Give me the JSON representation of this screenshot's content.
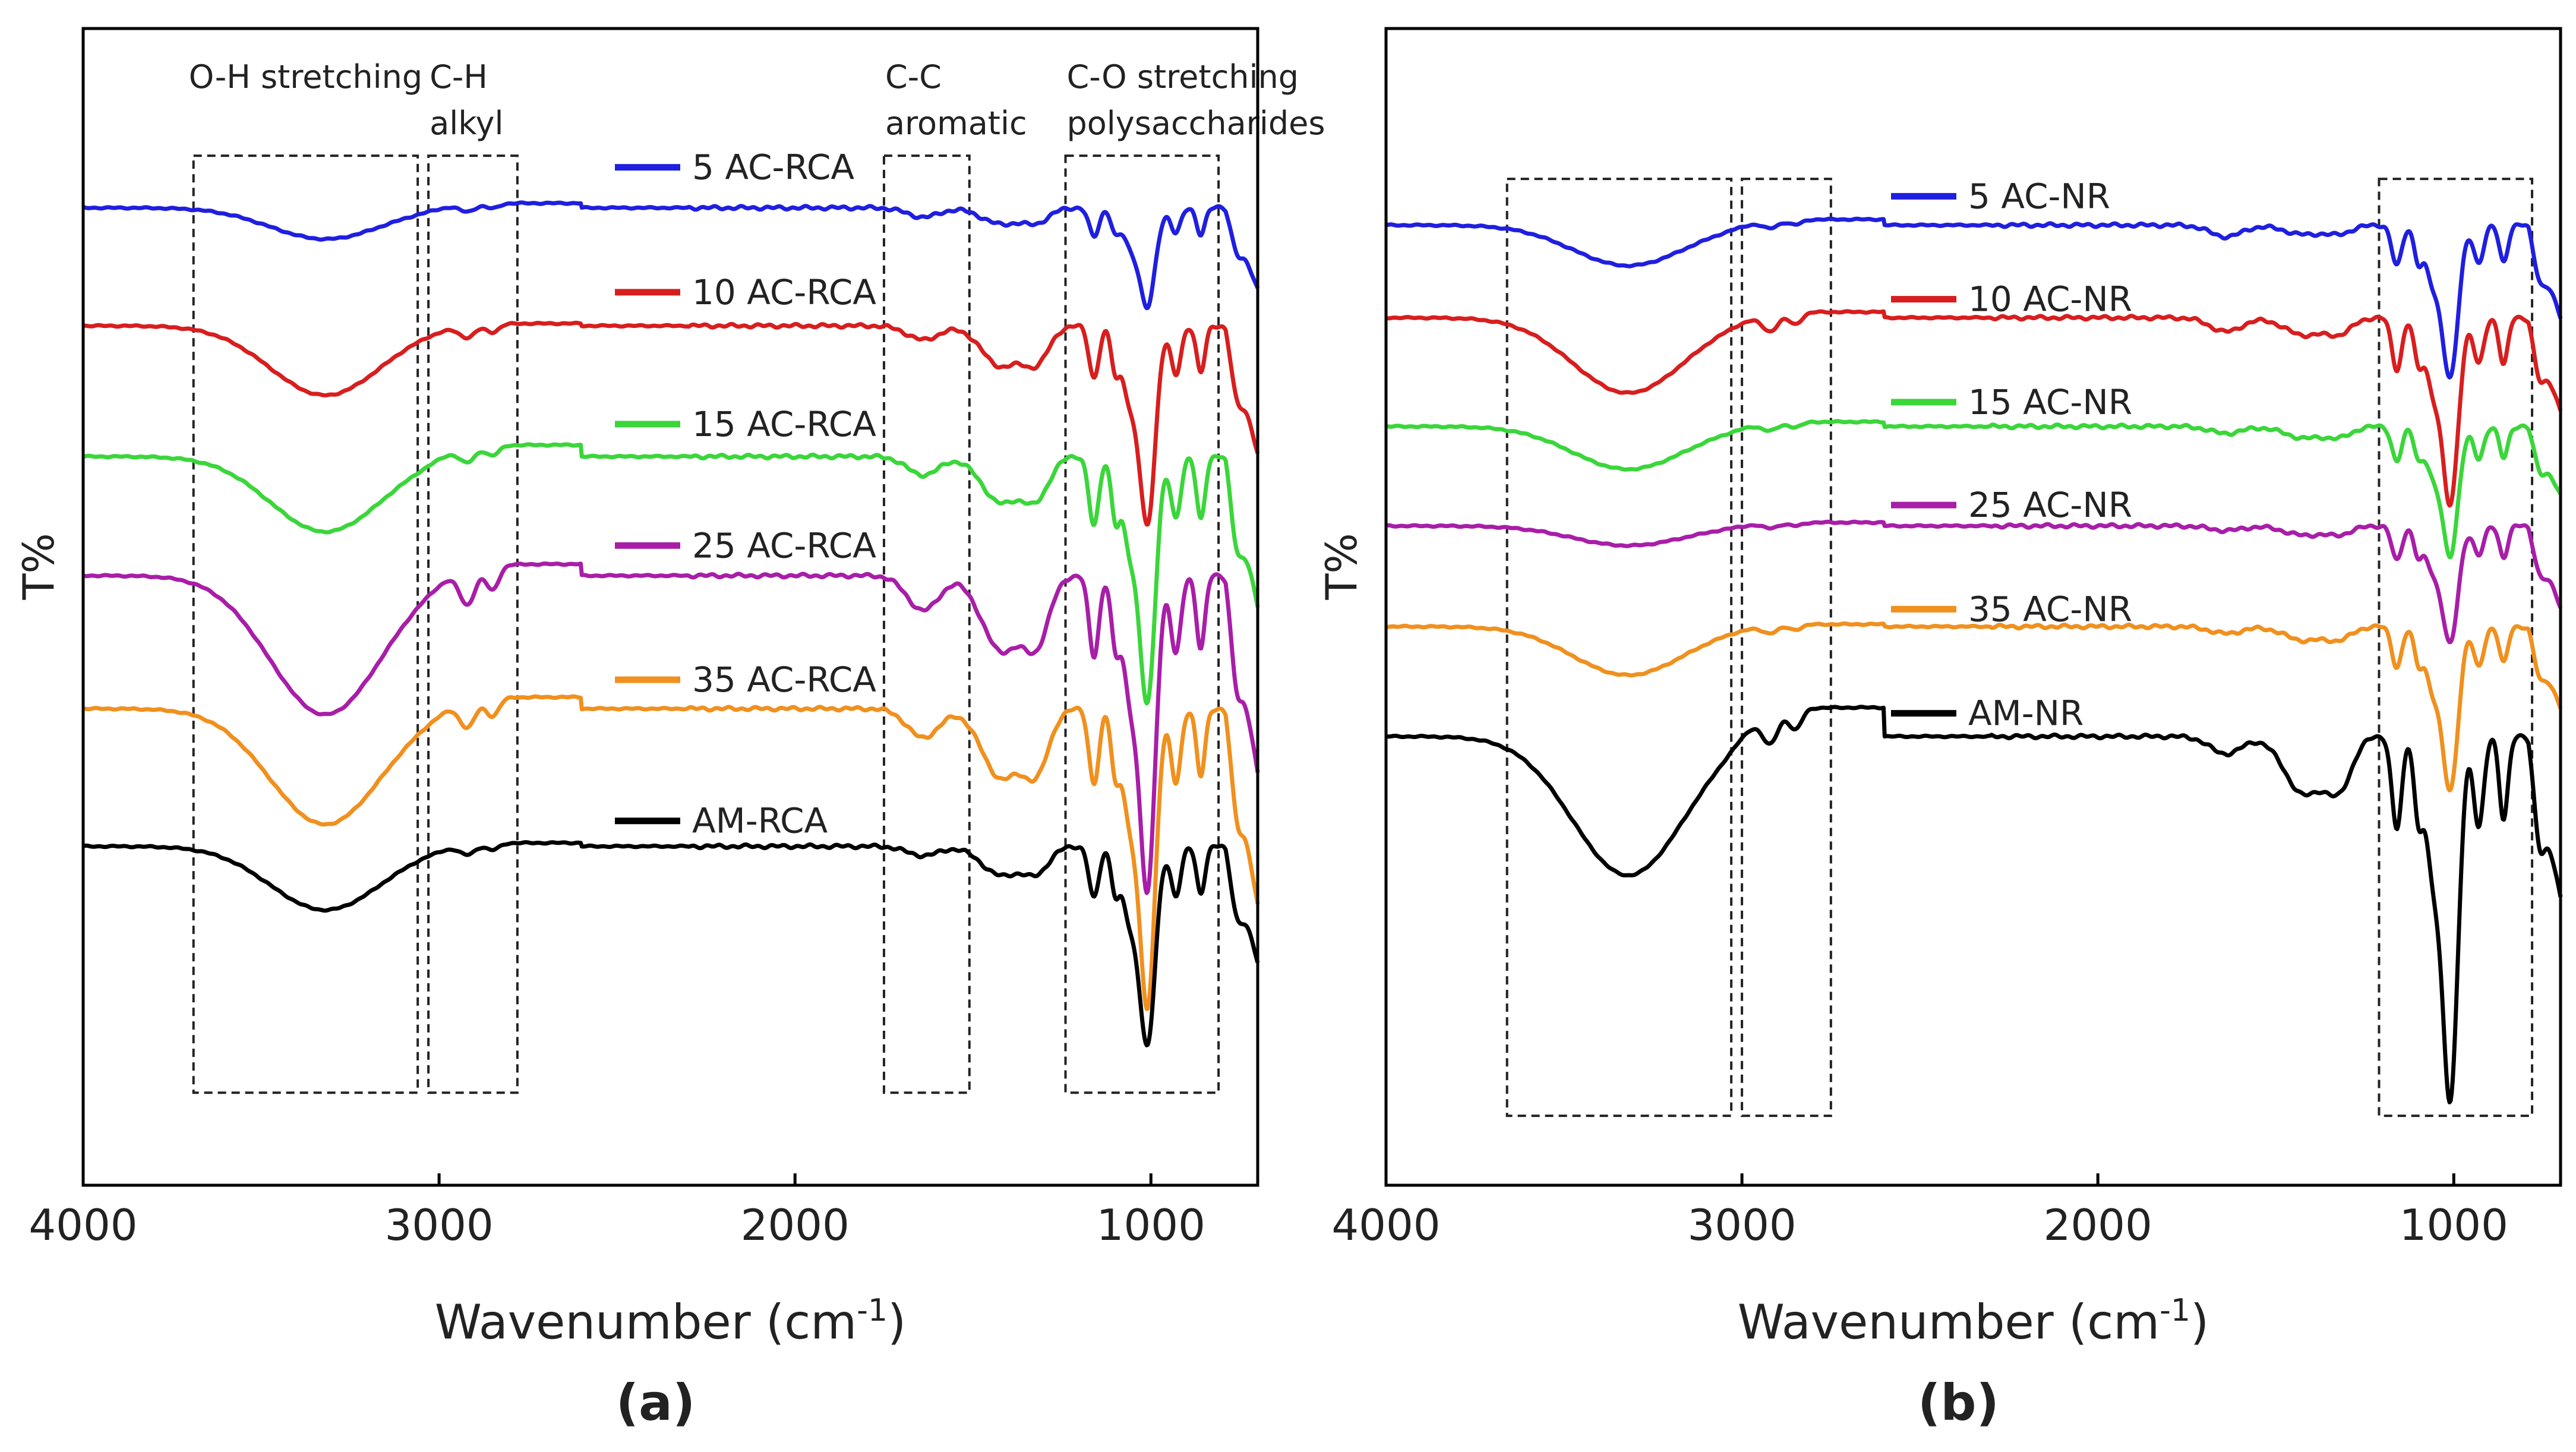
{
  "figure": {
    "background": "#ffffff",
    "axis_color": "#000000"
  },
  "chart_data": [
    {
      "type": "line",
      "panel_label": "(a)",
      "xlabel": "Wavenumber (cm",
      "xlabel_superscript": "-1",
      "xlabel_close": ")",
      "ylabel": "T%",
      "xlim": [
        4000,
        700
      ],
      "ylim": [
        0,
        1
      ],
      "x_ticks": [
        4000,
        3000,
        2000,
        1000
      ],
      "x_tick_labels": [
        "4000",
        "3000",
        "2000",
        "1000"
      ],
      "regions": [
        {
          "from": 3690,
          "to": 3060,
          "label_lines": [
            "O-H stretching"
          ]
        },
        {
          "from": 3030,
          "to": 2780,
          "label_lines": [
            "C-H",
            "alkyl"
          ]
        },
        {
          "from": 1750,
          "to": 1510,
          "label_lines": [
            "C-C",
            "aromatic"
          ]
        },
        {
          "from": 1240,
          "to": 810,
          "label_lines": [
            "C-O stretching",
            "polysaccharides"
          ]
        }
      ],
      "region_ylim": [
        0.08,
        0.89
      ],
      "series": [
        {
          "name": "5 AC-RCA",
          "color": "#1f1fe0",
          "baseline": 0.845,
          "legend_y": 0.88,
          "OH": 0.027,
          "CH_step": 0.004,
          "CH_dip": 0.006,
          "aromatic": 0.008,
          "region1400": 0.014,
          "CO_main": 0.085,
          "CO_side": 0.025,
          "end_drop": 0.07
        },
        {
          "name": "10 AC-RCA",
          "color": "#d81e1e",
          "baseline": 0.743,
          "legend_y": 0.772,
          "OH": 0.06,
          "CH_step": 0.002,
          "CH_dip": 0.01,
          "aromatic": 0.012,
          "region1400": 0.035,
          "CO_main": 0.17,
          "CO_side": 0.045,
          "end_drop": 0.11
        },
        {
          "name": "15 AC-RCA",
          "color": "#3ad63a",
          "baseline": 0.63,
          "legend_y": 0.658,
          "OH": 0.065,
          "CH_step": 0.01,
          "CH_dip": 0.012,
          "aromatic": 0.016,
          "region1400": 0.04,
          "CO_main": 0.21,
          "CO_side": 0.06,
          "end_drop": 0.13
        },
        {
          "name": "25 AC-RCA",
          "color": "#a81ea8",
          "baseline": 0.527,
          "legend_y": 0.553,
          "OH": 0.12,
          "CH_step": 0.01,
          "CH_dip": 0.03,
          "aromatic": 0.03,
          "region1400": 0.065,
          "CO_main": 0.27,
          "CO_side": 0.07,
          "end_drop": 0.17
        },
        {
          "name": "35 AC-RCA",
          "color": "#f0901e",
          "baseline": 0.412,
          "legend_y": 0.437,
          "OH": 0.1,
          "CH_step": 0.01,
          "CH_dip": 0.022,
          "aromatic": 0.025,
          "region1400": 0.06,
          "CO_main": 0.255,
          "CO_side": 0.065,
          "end_drop": 0.17
        },
        {
          "name": "AM-RCA",
          "color": "#000000",
          "baseline": 0.293,
          "legend_y": 0.315,
          "OH": 0.055,
          "CH_step": 0.003,
          "CH_dip": 0.008,
          "aromatic": 0.008,
          "region1400": 0.025,
          "CO_main": 0.17,
          "CO_side": 0.045,
          "end_drop": 0.1
        }
      ]
    },
    {
      "type": "line",
      "panel_label": "(b)",
      "xlabel": "Wavenumber (cm",
      "xlabel_superscript": "-1",
      "xlabel_close": ")",
      "ylabel": "T%",
      "xlim": [
        4000,
        700
      ],
      "ylim": [
        0,
        1
      ],
      "x_ticks": [
        4000,
        3000,
        2000,
        1000
      ],
      "x_tick_labels": [
        "4000",
        "3000",
        "2000",
        "1000"
      ],
      "regions": [
        {
          "from": 3660,
          "to": 3030,
          "label_lines": []
        },
        {
          "from": 3000,
          "to": 2750,
          "label_lines": []
        },
        {
          "from": 1210,
          "to": 780,
          "label_lines": []
        }
      ],
      "region_ylim": [
        0.06,
        0.87
      ],
      "series": [
        {
          "name": "5 AC-NR",
          "color": "#1f1fe0",
          "baseline": 0.83,
          "legend_y": 0.855,
          "OH": 0.035,
          "CH_step": 0.005,
          "CH_dip": 0.006,
          "aromatic": 0.01,
          "region1400": 0.008,
          "CO_main": 0.13,
          "CO_side": 0.035,
          "end_drop": 0.08
        },
        {
          "name": "10 AC-NR",
          "color": "#d81e1e",
          "baseline": 0.75,
          "legend_y": 0.766,
          "OH": 0.065,
          "CH_step": 0.005,
          "CH_dip": 0.014,
          "aromatic": 0.012,
          "region1400": 0.015,
          "CO_main": 0.16,
          "CO_side": 0.045,
          "end_drop": 0.08
        },
        {
          "name": "15 AC-NR",
          "color": "#3ad63a",
          "baseline": 0.656,
          "legend_y": 0.677,
          "OH": 0.037,
          "CH_step": 0.004,
          "CH_dip": 0.006,
          "aromatic": 0.006,
          "region1400": 0.01,
          "CO_main": 0.11,
          "CO_side": 0.03,
          "end_drop": 0.06
        },
        {
          "name": "25 AC-NR",
          "color": "#a81ea8",
          "baseline": 0.57,
          "legend_y": 0.588,
          "OH": 0.017,
          "CH_step": 0.003,
          "CH_dip": 0.004,
          "aromatic": 0.004,
          "region1400": 0.008,
          "CO_main": 0.1,
          "CO_side": 0.03,
          "end_drop": 0.07
        },
        {
          "name": "35 AC-NR",
          "color": "#f0901e",
          "baseline": 0.483,
          "legend_y": 0.498,
          "OH": 0.042,
          "CH_step": 0.002,
          "CH_dip": 0.006,
          "aromatic": 0.006,
          "region1400": 0.012,
          "CO_main": 0.14,
          "CO_side": 0.035,
          "end_drop": 0.07
        },
        {
          "name": "AM-NR",
          "color": "#000000",
          "baseline": 0.388,
          "legend_y": 0.408,
          "OH": 0.12,
          "CH_step": 0.025,
          "CH_dip": 0.025,
          "aromatic": 0.015,
          "region1400": 0.05,
          "CO_main": 0.31,
          "CO_side": 0.08,
          "end_drop": 0.14
        }
      ]
    }
  ]
}
